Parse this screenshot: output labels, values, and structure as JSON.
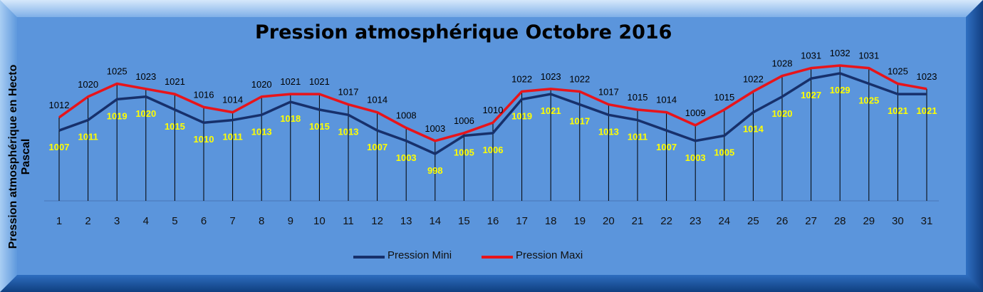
{
  "chart_data": {
    "type": "line",
    "title": "Pression atmosphérique Octobre 2016",
    "ylabel": "Pression atmosphérique en Hecto Pascal",
    "ylabel_lines": [
      "Pression atmosphérique en Hecto",
      "Pascal"
    ],
    "xlabel": "",
    "x": [
      1,
      2,
      3,
      4,
      5,
      6,
      7,
      8,
      9,
      10,
      11,
      12,
      13,
      14,
      15,
      16,
      17,
      18,
      19,
      20,
      21,
      22,
      23,
      24,
      25,
      26,
      27,
      28,
      29,
      30,
      31
    ],
    "ylim": [
      980,
      1040
    ],
    "grid": "vertical drop lines at each day",
    "legend_position": "bottom",
    "series": [
      {
        "name": "Pression Mini",
        "color": "#17306b",
        "label_color": "#ffff00",
        "values": [
          1007,
          1011,
          1019,
          1020,
          1015,
          1010,
          1011,
          1013,
          1018,
          1015,
          1013,
          1007,
          1003,
          998,
          1005,
          1006,
          1019,
          1021,
          1017,
          1013,
          1011,
          1007,
          1003,
          1005,
          1014,
          1020,
          1027,
          1029,
          1025,
          1021,
          1021
        ]
      },
      {
        "name": "Pression Maxi",
        "color": "#e8141a",
        "label_color": "#000000",
        "values": [
          1012,
          1020,
          1025,
          1023,
          1021,
          1016,
          1014,
          1020,
          1021,
          1021,
          1017,
          1014,
          1008,
          1003,
          1006,
          1010,
          1022,
          1023,
          1022,
          1017,
          1015,
          1014,
          1009,
          1015,
          1022,
          1028,
          1031,
          1032,
          1031,
          1025,
          1023
        ]
      }
    ]
  }
}
